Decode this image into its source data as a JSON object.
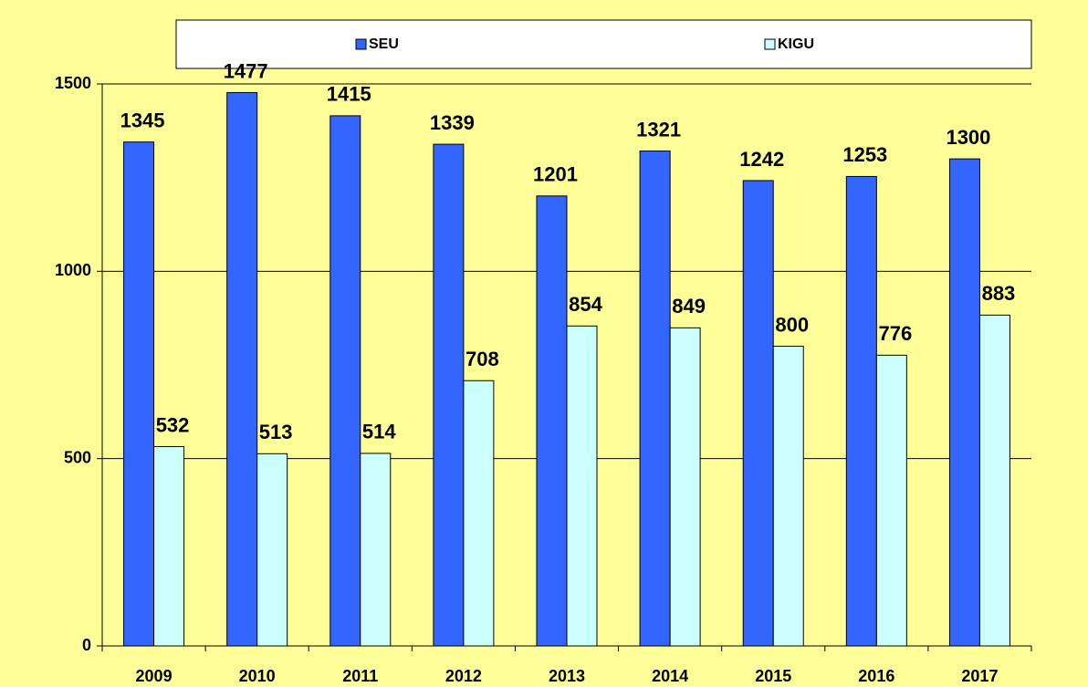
{
  "chart_data": {
    "type": "bar",
    "categories": [
      "2009",
      "2010",
      "2011",
      "2012",
      "2013",
      "2014",
      "2015",
      "2016",
      "2017"
    ],
    "series": [
      {
        "name": "SEU",
        "color": "#3366ff",
        "values": [
          1345,
          1477,
          1415,
          1339,
          1201,
          1321,
          1242,
          1253,
          1300
        ]
      },
      {
        "name": "KIGU",
        "color": "#ccffff",
        "values": [
          532,
          513,
          514,
          708,
          854,
          849,
          800,
          776,
          883
        ]
      }
    ],
    "ylim": [
      0,
      1500
    ],
    "yticks": [
      0,
      500,
      1000,
      1500
    ],
    "grid": true,
    "background": "#ffff99",
    "legend": "top"
  }
}
